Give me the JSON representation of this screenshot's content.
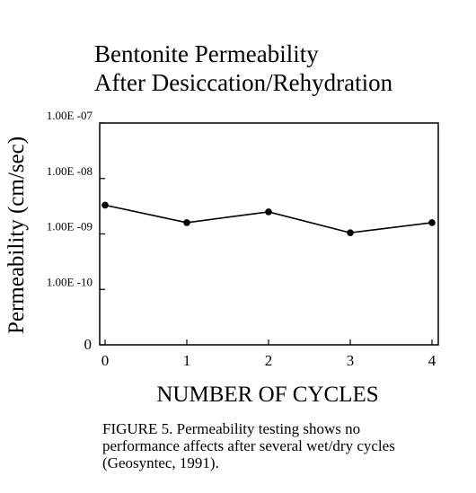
{
  "chart_data": {
    "type": "line",
    "title_lines": [
      "Bentonite Permeability",
      "After Desiccation/Rehydration"
    ],
    "xlabel": "NUMBER OF CYCLES",
    "ylabel": "Permeability (cm/sec)",
    "x": [
      0,
      1,
      2,
      3,
      4
    ],
    "values": [
      3.3e-09,
      1.6e-09,
      2.5e-09,
      1.05e-09,
      1.6e-09
    ],
    "x_ticks": [
      "0",
      "1",
      "2",
      "3",
      "4"
    ],
    "y_ticks": [
      {
        "label": "1.00E -07",
        "value": 1e-07
      },
      {
        "label": "1.00E -08",
        "value": 1e-08
      },
      {
        "label": "1.00E -09",
        "value": 1e-09
      },
      {
        "label": "1.00E -10",
        "value": 1e-10
      },
      {
        "label": "0",
        "value": 1e-11
      }
    ],
    "y_scale": "log",
    "xlim": [
      0,
      4
    ],
    "ylim": [
      1e-11,
      1e-07
    ],
    "grid": false,
    "colors": {
      "line": "#000000",
      "marker": "#000000"
    }
  },
  "caption_lines": [
    "FIGURE 5.  Permeability testing shows no",
    "performance affects after several wet/dry cycles",
    "(Geosyntec, 1991)."
  ]
}
